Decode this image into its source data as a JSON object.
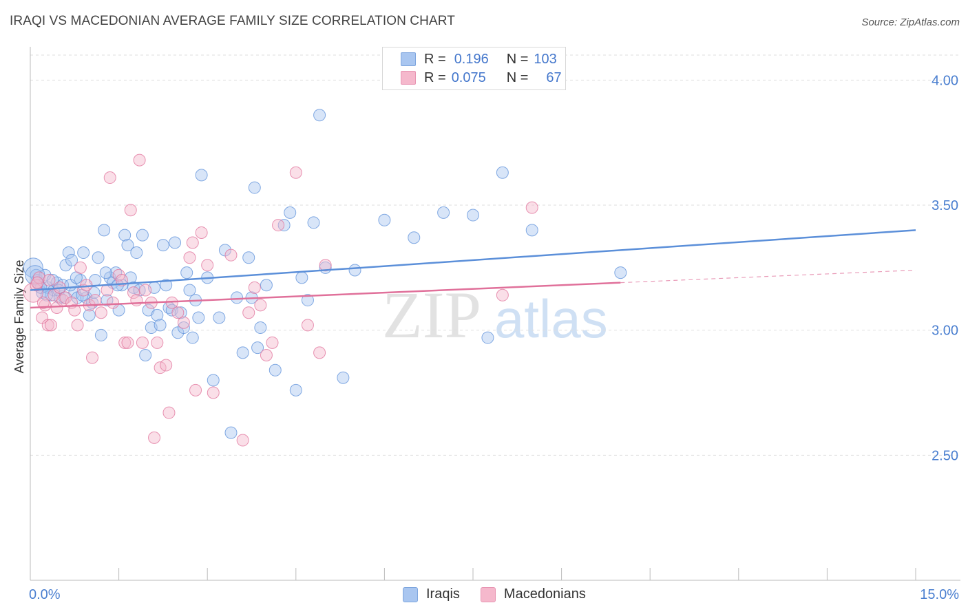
{
  "title": "IRAQI VS MACEDONIAN AVERAGE FAMILY SIZE CORRELATION CHART",
  "source": "Source: ZipAtlas.com",
  "watermark": {
    "zip": "ZIP",
    "atlas": "atlas"
  },
  "legend": {
    "rows": [
      {
        "r_label": "R =",
        "r_value": "0.196",
        "n_label": "N =",
        "n_value": "103",
        "color": "#a9c6f0"
      },
      {
        "r_label": "R =",
        "r_value": "0.075",
        "n_label": "N =",
        "n_value": "67",
        "color": "#f5b8cc"
      }
    ]
  },
  "bottom_legend": [
    {
      "label": "Iraqis",
      "color": "#a9c6f0"
    },
    {
      "label": "Macedonians",
      "color": "#f5b8cc"
    }
  ],
  "chart_data": {
    "type": "scatter",
    "title": "IRAQI VS MACEDONIAN AVERAGE FAMILY SIZE CORRELATION CHART",
    "xlabel": "",
    "ylabel": "Average Family Size",
    "xlim": [
      0,
      15
    ],
    "ylim": [
      2.0,
      4.1
    ],
    "x_tick_labels": [
      "0.0%",
      "15.0%"
    ],
    "y_ticks": [
      2.5,
      3.0,
      3.5,
      4.0
    ],
    "y_tick_labels": [
      "2.50",
      "3.00",
      "3.50",
      "4.00"
    ],
    "grid": true,
    "series": [
      {
        "name": "Iraqis",
        "color": "#5b8fd9",
        "fill": "#a9c6f0",
        "trend": {
          "x0": 0,
          "y0": 3.16,
          "x1": 15,
          "y1": 3.4
        },
        "points": [
          [
            0.05,
            3.25
          ],
          [
            0.1,
            3.22
          ],
          [
            0.12,
            3.2
          ],
          [
            0.15,
            3.18
          ],
          [
            0.2,
            3.15
          ],
          [
            0.25,
            3.22
          ],
          [
            0.3,
            3.17
          ],
          [
            0.35,
            3.14
          ],
          [
            0.4,
            3.16
          ],
          [
            0.45,
            3.19
          ],
          [
            0.5,
            3.13
          ],
          [
            0.55,
            3.18
          ],
          [
            0.6,
            3.26
          ],
          [
            0.65,
            3.31
          ],
          [
            0.7,
            3.28
          ],
          [
            0.75,
            3.15
          ],
          [
            0.8,
            3.13
          ],
          [
            0.85,
            3.2
          ],
          [
            0.9,
            3.31
          ],
          [
            0.95,
            3.13
          ],
          [
            1.0,
            3.06
          ],
          [
            1.05,
            3.11
          ],
          [
            1.1,
            3.2
          ],
          [
            1.15,
            3.29
          ],
          [
            1.2,
            2.98
          ],
          [
            1.25,
            3.4
          ],
          [
            1.3,
            3.12
          ],
          [
            1.35,
            3.21
          ],
          [
            1.4,
            3.19
          ],
          [
            1.45,
            3.23
          ],
          [
            1.5,
            3.08
          ],
          [
            1.55,
            3.18
          ],
          [
            1.6,
            3.38
          ],
          [
            1.65,
            3.34
          ],
          [
            1.7,
            3.21
          ],
          [
            1.75,
            3.17
          ],
          [
            1.8,
            3.31
          ],
          [
            1.85,
            3.16
          ],
          [
            1.9,
            3.38
          ],
          [
            1.95,
            2.9
          ],
          [
            2.0,
            3.08
          ],
          [
            2.05,
            3.01
          ],
          [
            2.1,
            3.17
          ],
          [
            2.15,
            3.06
          ],
          [
            2.2,
            3.02
          ],
          [
            2.25,
            3.34
          ],
          [
            2.3,
            3.18
          ],
          [
            2.35,
            3.09
          ],
          [
            2.4,
            3.08
          ],
          [
            2.45,
            3.35
          ],
          [
            2.5,
            2.99
          ],
          [
            2.55,
            3.07
          ],
          [
            2.6,
            3.01
          ],
          [
            2.65,
            3.23
          ],
          [
            2.7,
            3.16
          ],
          [
            2.75,
            2.97
          ],
          [
            2.8,
            3.12
          ],
          [
            2.85,
            3.05
          ],
          [
            2.9,
            3.62
          ],
          [
            3.0,
            3.21
          ],
          [
            3.1,
            2.8
          ],
          [
            3.2,
            3.05
          ],
          [
            3.3,
            3.32
          ],
          [
            3.4,
            2.59
          ],
          [
            3.5,
            3.13
          ],
          [
            3.6,
            2.91
          ],
          [
            3.7,
            3.29
          ],
          [
            3.75,
            3.13
          ],
          [
            3.8,
            3.57
          ],
          [
            3.85,
            2.93
          ],
          [
            3.9,
            3.01
          ],
          [
            4.0,
            3.18
          ],
          [
            4.15,
            2.84
          ],
          [
            4.3,
            3.42
          ],
          [
            4.4,
            3.47
          ],
          [
            4.5,
            2.76
          ],
          [
            4.6,
            3.21
          ],
          [
            4.7,
            3.12
          ],
          [
            4.8,
            3.43
          ],
          [
            4.9,
            3.86
          ],
          [
            5.0,
            3.25
          ],
          [
            5.3,
            2.81
          ],
          [
            5.5,
            3.24
          ],
          [
            6.0,
            3.44
          ],
          [
            6.5,
            3.37
          ],
          [
            7.0,
            3.47
          ],
          [
            7.5,
            3.46
          ],
          [
            7.75,
            2.97
          ],
          [
            8.0,
            3.63
          ],
          [
            8.5,
            3.4
          ],
          [
            10.0,
            3.23
          ],
          [
            0.08,
            3.22
          ],
          [
            0.18,
            3.17
          ],
          [
            0.28,
            3.14
          ],
          [
            0.38,
            3.2
          ],
          [
            0.48,
            3.16
          ],
          [
            0.58,
            3.13
          ],
          [
            0.68,
            3.18
          ],
          [
            0.78,
            3.21
          ],
          [
            0.88,
            3.14
          ],
          [
            1.08,
            3.15
          ],
          [
            1.28,
            3.23
          ],
          [
            1.48,
            3.18
          ]
        ]
      },
      {
        "name": "Macedonians",
        "color": "#e0709a",
        "fill": "#f5b8cc",
        "trend": {
          "x0": 0,
          "y0": 3.09,
          "x1": 10.0,
          "y1": 3.19
        },
        "trend_dashed_to": {
          "x": 15,
          "y": 3.24
        },
        "points": [
          [
            0.05,
            3.15
          ],
          [
            0.1,
            3.18
          ],
          [
            0.15,
            3.21
          ],
          [
            0.2,
            3.05
          ],
          [
            0.25,
            3.1
          ],
          [
            0.3,
            3.02
          ],
          [
            0.35,
            3.02
          ],
          [
            0.4,
            3.14
          ],
          [
            0.45,
            3.09
          ],
          [
            0.5,
            3.17
          ],
          [
            0.55,
            3.12
          ],
          [
            0.6,
            3.13
          ],
          [
            0.7,
            3.11
          ],
          [
            0.75,
            3.08
          ],
          [
            0.8,
            3.02
          ],
          [
            0.85,
            3.25
          ],
          [
            0.9,
            3.16
          ],
          [
            0.95,
            3.18
          ],
          [
            1.0,
            3.1
          ],
          [
            1.05,
            2.89
          ],
          [
            1.1,
            3.12
          ],
          [
            1.2,
            3.07
          ],
          [
            1.3,
            3.16
          ],
          [
            1.35,
            3.61
          ],
          [
            1.4,
            3.11
          ],
          [
            1.5,
            3.22
          ],
          [
            1.55,
            3.2
          ],
          [
            1.6,
            2.95
          ],
          [
            1.65,
            2.95
          ],
          [
            1.7,
            3.48
          ],
          [
            1.75,
            3.15
          ],
          [
            1.8,
            3.12
          ],
          [
            1.85,
            3.68
          ],
          [
            1.9,
            2.95
          ],
          [
            1.95,
            3.16
          ],
          [
            2.05,
            3.11
          ],
          [
            2.1,
            2.57
          ],
          [
            2.15,
            2.95
          ],
          [
            2.2,
            2.85
          ],
          [
            2.3,
            2.86
          ],
          [
            2.35,
            2.67
          ],
          [
            2.4,
            3.11
          ],
          [
            2.5,
            3.07
          ],
          [
            2.6,
            3.03
          ],
          [
            2.7,
            3.29
          ],
          [
            2.75,
            3.35
          ],
          [
            2.8,
            2.76
          ],
          [
            2.9,
            3.39
          ],
          [
            3.0,
            3.26
          ],
          [
            3.1,
            2.75
          ],
          [
            3.4,
            3.3
          ],
          [
            3.6,
            2.56
          ],
          [
            3.7,
            3.07
          ],
          [
            3.8,
            3.17
          ],
          [
            3.9,
            3.1
          ],
          [
            4.0,
            2.9
          ],
          [
            4.2,
            3.42
          ],
          [
            4.5,
            3.63
          ],
          [
            4.7,
            3.02
          ],
          [
            4.9,
            2.91
          ],
          [
            5.0,
            3.26
          ],
          [
            8.0,
            3.14
          ],
          [
            8.5,
            3.49
          ],
          [
            0.12,
            3.19
          ],
          [
            0.22,
            3.11
          ],
          [
            0.32,
            3.2
          ],
          [
            4.1,
            2.95
          ]
        ]
      }
    ]
  }
}
